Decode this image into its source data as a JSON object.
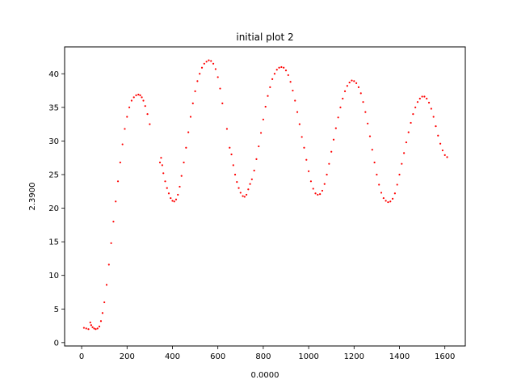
{
  "chart_data": {
    "type": "scatter",
    "title": "initial plot 2",
    "xlabel": "0.0000",
    "ylabel": "2.3900",
    "xlim": [
      -75,
      1690
    ],
    "ylim": [
      -0.5,
      44
    ],
    "xticks": [
      0,
      200,
      400,
      600,
      800,
      1000,
      1200,
      1400,
      1600
    ],
    "yticks": [
      0,
      5,
      10,
      15,
      20,
      25,
      30,
      35,
      40
    ],
    "grid": false,
    "legend": "none",
    "marker_color": "#ff0000",
    "series": [
      {
        "points": [
          [
            10,
            2.2
          ],
          [
            20,
            2.1
          ],
          [
            30,
            2.0
          ],
          [
            38,
            3.0
          ],
          [
            42,
            2.6
          ],
          [
            48,
            2.3
          ],
          [
            55,
            2.1
          ],
          [
            62,
            2.0
          ],
          [
            70,
            2.1
          ],
          [
            78,
            2.4
          ],
          [
            85,
            3.2
          ],
          [
            92,
            4.4
          ],
          [
            100,
            6.0
          ],
          [
            110,
            8.6
          ],
          [
            120,
            11.6
          ],
          [
            130,
            14.8
          ],
          [
            140,
            18.0
          ],
          [
            150,
            21.0
          ],
          [
            160,
            24.0
          ],
          [
            170,
            26.8
          ],
          [
            180,
            29.5
          ],
          [
            190,
            31.8
          ],
          [
            200,
            33.6
          ],
          [
            210,
            35.0
          ],
          [
            220,
            36.0
          ],
          [
            230,
            36.5
          ],
          [
            240,
            36.8
          ],
          [
            250,
            36.9
          ],
          [
            258,
            36.8
          ],
          [
            265,
            36.5
          ],
          [
            272,
            36.0
          ],
          [
            280,
            35.2
          ],
          [
            290,
            34.0
          ],
          [
            300,
            32.5
          ],
          [
            345,
            26.8
          ],
          [
            350,
            27.5
          ],
          [
            355,
            26.4
          ],
          [
            360,
            25.2
          ],
          [
            368,
            24.0
          ],
          [
            376,
            23.0
          ],
          [
            384,
            22.2
          ],
          [
            392,
            21.5
          ],
          [
            400,
            21.1
          ],
          [
            408,
            21.0
          ],
          [
            416,
            21.3
          ],
          [
            424,
            22.0
          ],
          [
            432,
            23.2
          ],
          [
            440,
            24.8
          ],
          [
            450,
            26.8
          ],
          [
            460,
            29.0
          ],
          [
            470,
            31.3
          ],
          [
            480,
            33.6
          ],
          [
            490,
            35.6
          ],
          [
            500,
            37.4
          ],
          [
            510,
            38.9
          ],
          [
            520,
            40.0
          ],
          [
            530,
            40.9
          ],
          [
            540,
            41.5
          ],
          [
            550,
            41.8
          ],
          [
            560,
            42.0
          ],
          [
            570,
            41.9
          ],
          [
            580,
            41.5
          ],
          [
            590,
            40.7
          ],
          [
            600,
            39.5
          ],
          [
            610,
            37.8
          ],
          [
            620,
            35.6
          ],
          [
            640,
            31.8
          ],
          [
            652,
            29.0
          ],
          [
            660,
            28.0
          ],
          [
            668,
            26.4
          ],
          [
            676,
            25.0
          ],
          [
            684,
            23.9
          ],
          [
            692,
            23.0
          ],
          [
            700,
            22.3
          ],
          [
            710,
            21.8
          ],
          [
            718,
            21.7
          ],
          [
            726,
            22.0
          ],
          [
            734,
            22.8
          ],
          [
            742,
            23.6
          ],
          [
            750,
            24.3
          ],
          [
            760,
            25.6
          ],
          [
            770,
            27.3
          ],
          [
            780,
            29.2
          ],
          [
            790,
            31.2
          ],
          [
            800,
            33.2
          ],
          [
            810,
            35.1
          ],
          [
            820,
            36.7
          ],
          [
            830,
            38.0
          ],
          [
            840,
            39.2
          ],
          [
            850,
            40.0
          ],
          [
            860,
            40.6
          ],
          [
            870,
            40.9
          ],
          [
            880,
            41.0
          ],
          [
            890,
            40.9
          ],
          [
            900,
            40.5
          ],
          [
            910,
            39.8
          ],
          [
            920,
            38.8
          ],
          [
            930,
            37.5
          ],
          [
            940,
            36.0
          ],
          [
            950,
            34.3
          ],
          [
            960,
            32.5
          ],
          [
            970,
            30.6
          ],
          [
            980,
            29.0
          ],
          [
            990,
            27.2
          ],
          [
            1000,
            25.5
          ],
          [
            1010,
            24.0
          ],
          [
            1020,
            22.9
          ],
          [
            1030,
            22.2
          ],
          [
            1040,
            22.0
          ],
          [
            1050,
            22.1
          ],
          [
            1060,
            22.6
          ],
          [
            1070,
            23.6
          ],
          [
            1080,
            25.0
          ],
          [
            1090,
            26.6
          ],
          [
            1100,
            28.4
          ],
          [
            1110,
            30.2
          ],
          [
            1120,
            31.9
          ],
          [
            1130,
            33.5
          ],
          [
            1140,
            35.0
          ],
          [
            1150,
            36.3
          ],
          [
            1160,
            37.4
          ],
          [
            1170,
            38.2
          ],
          [
            1180,
            38.7
          ],
          [
            1190,
            39.0
          ],
          [
            1200,
            38.9
          ],
          [
            1210,
            38.6
          ],
          [
            1220,
            38.0
          ],
          [
            1230,
            37.1
          ],
          [
            1240,
            35.8
          ],
          [
            1250,
            34.3
          ],
          [
            1260,
            32.6
          ],
          [
            1270,
            30.7
          ],
          [
            1280,
            28.7
          ],
          [
            1290,
            26.8
          ],
          [
            1300,
            25.0
          ],
          [
            1310,
            23.5
          ],
          [
            1320,
            22.3
          ],
          [
            1330,
            21.5
          ],
          [
            1340,
            21.1
          ],
          [
            1350,
            20.9
          ],
          [
            1360,
            21.0
          ],
          [
            1370,
            21.4
          ],
          [
            1380,
            22.2
          ],
          [
            1390,
            23.5
          ],
          [
            1400,
            25.0
          ],
          [
            1410,
            26.6
          ],
          [
            1420,
            28.2
          ],
          [
            1430,
            29.8
          ],
          [
            1440,
            31.3
          ],
          [
            1450,
            32.7
          ],
          [
            1460,
            34.0
          ],
          [
            1470,
            35.0
          ],
          [
            1480,
            35.8
          ],
          [
            1490,
            36.3
          ],
          [
            1500,
            36.6
          ],
          [
            1510,
            36.6
          ],
          [
            1520,
            36.3
          ],
          [
            1530,
            35.7
          ],
          [
            1540,
            34.8
          ],
          [
            1550,
            33.6
          ],
          [
            1560,
            32.2
          ],
          [
            1570,
            30.8
          ],
          [
            1580,
            29.6
          ],
          [
            1590,
            28.6
          ],
          [
            1600,
            27.9
          ],
          [
            1610,
            27.6
          ]
        ]
      }
    ]
  }
}
